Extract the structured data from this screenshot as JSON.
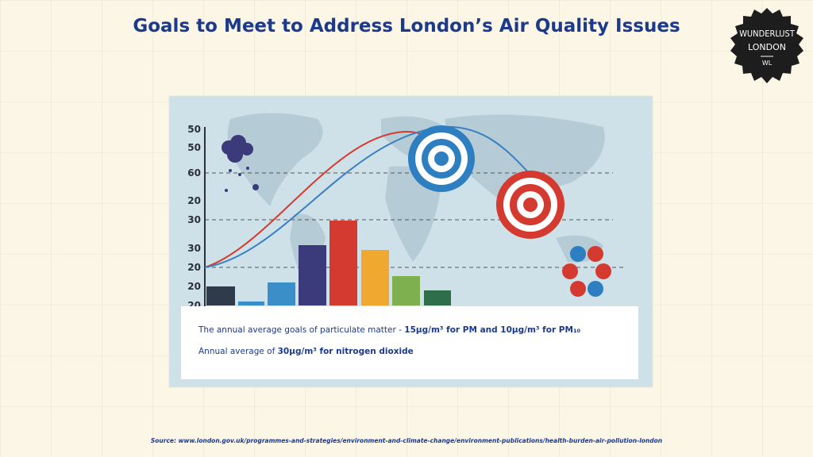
{
  "title": "Goals to Meet to Address London’s Air Quality Issues",
  "logo": {
    "line1": "WUNDERLUST",
    "line2": "LONDON",
    "mark": "WL"
  },
  "infographic": {
    "axis_labels": [
      "50",
      "50",
      "60",
      "20",
      "30",
      "30",
      "20",
      "20",
      "20"
    ]
  },
  "notes": [
    {
      "text": "The annual average goals of particulate matter - ",
      "bold": "15µg/m³ for PM and 10µg/m³ for PM₁₀"
    },
    {
      "text": "Annual average of ",
      "bold": "30µg/m³ for nitrogen dioxide"
    }
  ],
  "source": "Source: www.london.gov.uk/programmes-and-strategies/environment-and-climate-change/environment-publications/health-burden-air-pollution-london"
}
